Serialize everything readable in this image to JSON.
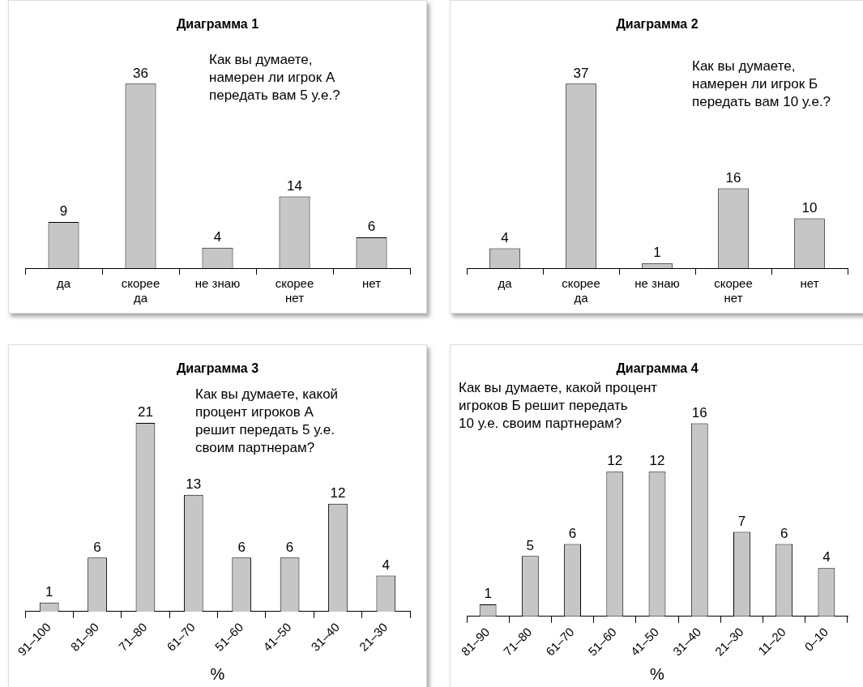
{
  "chart_data": [
    {
      "type": "bar",
      "title": "Диаграмма 1",
      "categories": [
        "да",
        "скорее\nда",
        "не знаю",
        "скорее\nнет",
        "нет"
      ],
      "values": [
        9,
        36,
        4,
        14,
        6
      ],
      "color": "#c6c6c6",
      "data_labels": true,
      "annotations": [
        "Как вы думаете,\nнамерен ли игрок А\nпередать вам 5 у.е.?"
      ]
    },
    {
      "type": "bar",
      "title": "Диаграмма 2",
      "categories": [
        "да",
        "скорее\nда",
        "не знаю",
        "скорее\nнет",
        "нет"
      ],
      "values": [
        4,
        37,
        1,
        16,
        10
      ],
      "color": "#c6c6c6",
      "data_labels": true,
      "annotations": [
        "Как вы думаете,\nнамерен ли игрок Б\nпередать вам 10 у.е.?"
      ]
    },
    {
      "type": "bar",
      "title": "Диаграмма 3",
      "categories": [
        "91–100",
        "81–90",
        "71–80",
        "61–70",
        "51–60",
        "41–50",
        "31–40",
        "21–30"
      ],
      "values": [
        1,
        6,
        21,
        13,
        6,
        6,
        12,
        4
      ],
      "color": "#c6c6c6",
      "data_labels": true,
      "xlabel": "%",
      "annotations": [
        "Как вы думаете, какой\nпроцент игроков А\nрешит передать 5 у.е.\nсвоим партнерам?"
      ]
    },
    {
      "type": "bar",
      "title": "Диаграмма 4",
      "categories": [
        "81–90",
        "71–80",
        "61–70",
        "51–60",
        "41–50",
        "31–40",
        "21–30",
        "11–20",
        "0–10"
      ],
      "values": [
        1,
        5,
        6,
        12,
        12,
        16,
        7,
        6,
        4
      ],
      "color": "#c6c6c6",
      "data_labels": true,
      "xlabel": "%",
      "annotations": [
        "Как вы думаете, какой процент\nигроков Б решит передать\n10 у.е. своим партнерам?"
      ]
    }
  ]
}
